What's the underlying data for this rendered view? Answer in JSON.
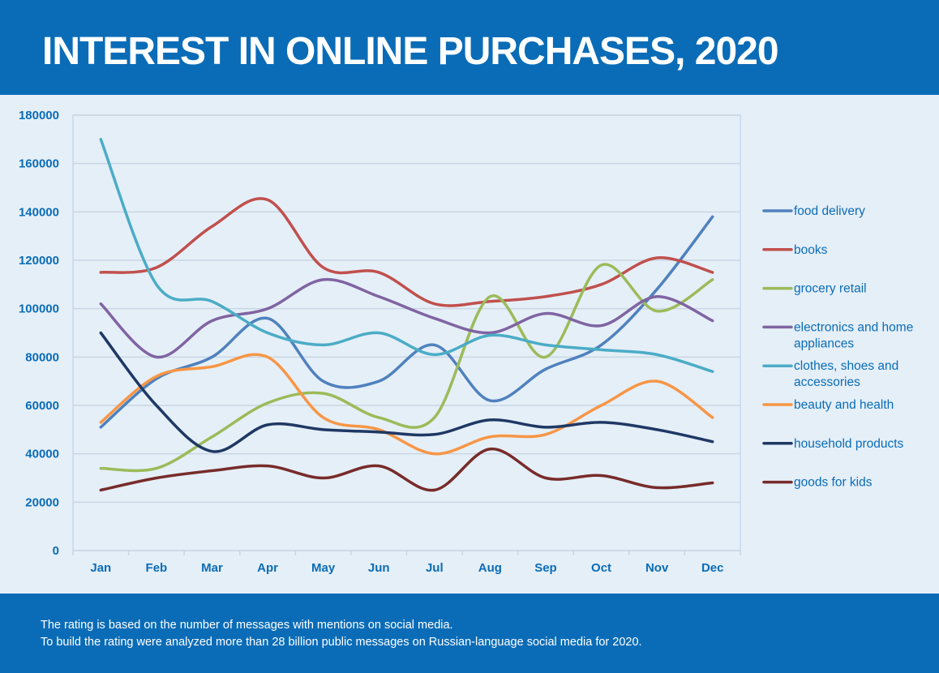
{
  "header": {
    "title": "INTEREST IN ONLINE PURCHASES, 2020"
  },
  "footer": {
    "line1": "The rating is based on the number of messages with mentions on social media.",
    "line2": "To build the rating were analyzed more than 28 billion public messages on Russian-language social media for 2020."
  },
  "chart_data": {
    "type": "line",
    "title": "INTEREST IN ONLINE PURCHASES, 2020",
    "categories": [
      "Jan",
      "Feb",
      "Mar",
      "Apr",
      "May",
      "Jun",
      "Jul",
      "Aug",
      "Sep",
      "Oct",
      "Nov",
      "Dec"
    ],
    "ylim": [
      0,
      180000
    ],
    "yticks": [
      "0",
      "20000",
      "40000",
      "60000",
      "80000",
      "100000",
      "120000",
      "140000",
      "160000",
      "180000"
    ],
    "grid": true,
    "legend_position": "right",
    "series": [
      {
        "name": "food delivery",
        "label_lines": [
          "food delivery"
        ],
        "color": "#4f81bd",
        "values": [
          51000,
          71000,
          80000,
          96000,
          70000,
          70000,
          85000,
          62000,
          75000,
          85000,
          108000,
          138000
        ]
      },
      {
        "name": "books",
        "label_lines": [
          "books"
        ],
        "color": "#c0504d",
        "values": [
          115000,
          117000,
          134000,
          145000,
          117000,
          115000,
          102000,
          103000,
          105000,
          110000,
          121000,
          115000
        ]
      },
      {
        "name": "grocery retail",
        "label_lines": [
          "grocery retail"
        ],
        "color": "#9bbb59",
        "values": [
          34000,
          34000,
          47000,
          61000,
          65000,
          55000,
          55000,
          105000,
          80000,
          118000,
          99000,
          112000
        ]
      },
      {
        "name": "electronics and home appliances",
        "label_lines": [
          "electronics and home",
          "appliances"
        ],
        "color": "#8064a2",
        "values": [
          102000,
          80000,
          95000,
          100000,
          112000,
          105000,
          96000,
          90000,
          98000,
          93000,
          105000,
          95000
        ]
      },
      {
        "name": "clothes, shoes and accessories",
        "label_lines": [
          "clothes, shoes and",
          "accessories"
        ],
        "color": "#4bacc6",
        "values": [
          170000,
          110000,
          103000,
          90000,
          85000,
          90000,
          81000,
          89000,
          85000,
          83000,
          81000,
          74000
        ]
      },
      {
        "name": "beauty and health",
        "label_lines": [
          "beauty and health"
        ],
        "color": "#f79646",
        "values": [
          53000,
          72000,
          76000,
          80000,
          55000,
          50000,
          40000,
          47000,
          48000,
          60000,
          70000,
          55000
        ]
      },
      {
        "name": "household products",
        "label_lines": [
          "household products"
        ],
        "color": "#1f3864",
        "values": [
          90000,
          60000,
          41000,
          52000,
          50000,
          49000,
          48000,
          54000,
          51000,
          53000,
          50000,
          45000
        ]
      },
      {
        "name": "goods for kids",
        "label_lines": [
          "goods for kids"
        ],
        "color": "#772c2a",
        "values": [
          25000,
          30000,
          33000,
          35000,
          30000,
          35000,
          25000,
          42000,
          30000,
          31000,
          26000,
          28000
        ]
      }
    ]
  }
}
